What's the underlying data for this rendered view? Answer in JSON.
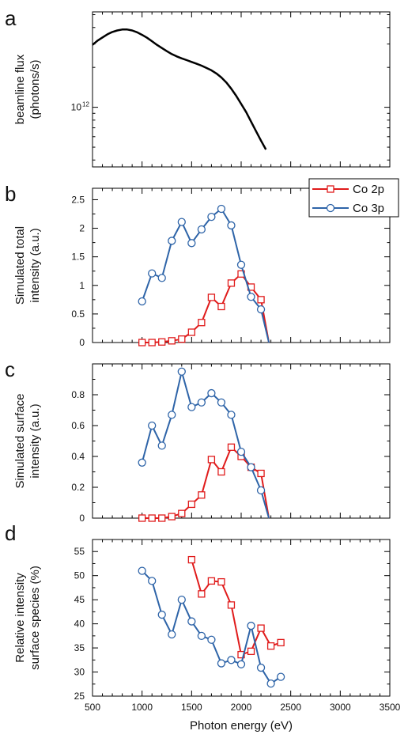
{
  "chart_data": [
    {
      "panel": "a",
      "type": "line",
      "yscale": "log",
      "ylabel": [
        "beamline flux",
        "(photons/s)"
      ],
      "yticks": [
        {
          "value": 1000000000000.0,
          "label": "10",
          "sup": "12"
        }
      ],
      "xlim": [
        500,
        3500
      ],
      "ylim_log10": [
        11.55,
        12.72
      ],
      "series": [
        {
          "color": "#000000",
          "x": [
            500,
            550,
            600,
            650,
            700,
            750,
            800,
            850,
            900,
            950,
            1000,
            1050,
            1100,
            1150,
            1200,
            1250,
            1300,
            1350,
            1400,
            1450,
            1500,
            1550,
            1600,
            1650,
            1700,
            1750,
            1800,
            1850,
            1900,
            1950,
            2000,
            2050,
            2100,
            2150,
            2200,
            2250
          ],
          "y": [
            2960000000000.0,
            3180000000000.0,
            3360000000000.0,
            3550000000000.0,
            3700000000000.0,
            3800000000000.0,
            3860000000000.0,
            3860000000000.0,
            3800000000000.0,
            3680000000000.0,
            3520000000000.0,
            3350000000000.0,
            3150000000000.0,
            2960000000000.0,
            2800000000000.0,
            2650000000000.0,
            2520000000000.0,
            2420000000000.0,
            2340000000000.0,
            2270000000000.0,
            2200000000000.0,
            2130000000000.0,
            2060000000000.0,
            1980000000000.0,
            1900000000000.0,
            1800000000000.0,
            1680000000000.0,
            1540000000000.0,
            1380000000000.0,
            1220000000000.0,
            1060000000000.0,
            920000000000.0,
            780000000000.0,
            660000000000.0,
            560000000000.0,
            480000000000.0
          ]
        }
      ]
    },
    {
      "panel": "b",
      "type": "line",
      "ylabel": [
        "Simulated total",
        "intensity (a.u.)"
      ],
      "yticks": [
        0,
        0.5,
        1,
        1.5,
        2,
        2.5
      ],
      "ytick_labels": [
        "0",
        "0.5",
        "1",
        "1.5",
        "2",
        "2.5"
      ],
      "xlim": [
        500,
        3500
      ],
      "ylim": [
        0,
        2.7
      ],
      "series": [
        {
          "name": "Co 2p",
          "color": "#e01b1b",
          "marker": "square",
          "x": [
            1000,
            1100,
            1200,
            1300,
            1400,
            1500,
            1600,
            1700,
            1800,
            1900,
            2000,
            2100,
            2200,
            2280
          ],
          "y": [
            0.0,
            0.0,
            0.01,
            0.03,
            0.06,
            0.18,
            0.35,
            0.79,
            0.63,
            1.04,
            1.2,
            0.97,
            0.75,
            0
          ]
        },
        {
          "name": "Co 3p",
          "color": "#2e64a8",
          "marker": "circle",
          "x": [
            1000,
            1100,
            1200,
            1300,
            1400,
            1500,
            1600,
            1700,
            1800,
            1900,
            2000,
            2100,
            2200,
            2280
          ],
          "y": [
            0.72,
            1.21,
            1.13,
            1.78,
            2.11,
            1.74,
            1.98,
            2.2,
            2.34,
            2.05,
            1.36,
            0.8,
            0.58,
            0
          ]
        }
      ],
      "legend": [
        {
          "label": "Co 2p",
          "color": "#e01b1b",
          "marker": "square"
        },
        {
          "label": "Co 3p",
          "color": "#2e64a8",
          "marker": "circle"
        }
      ]
    },
    {
      "panel": "c",
      "type": "line",
      "ylabel": [
        "Simulated surface",
        "intensity (a.u.)"
      ],
      "yticks": [
        0,
        0.2,
        0.4,
        0.6,
        0.8
      ],
      "ytick_labels": [
        "0",
        "0.2",
        "0.4",
        "0.6",
        "0.8"
      ],
      "xlim": [
        500,
        3500
      ],
      "ylim": [
        0,
        1.0
      ],
      "series": [
        {
          "name": "Co 2p",
          "color": "#e01b1b",
          "marker": "square",
          "x": [
            1000,
            1100,
            1200,
            1300,
            1400,
            1500,
            1600,
            1700,
            1800,
            1900,
            2000,
            2100,
            2200,
            2280
          ],
          "y": [
            0.0,
            0.0,
            0.0,
            0.01,
            0.03,
            0.09,
            0.15,
            0.38,
            0.3,
            0.46,
            0.4,
            0.33,
            0.29,
            0
          ]
        },
        {
          "name": "Co 3p",
          "color": "#2e64a8",
          "marker": "circle",
          "x": [
            1000,
            1100,
            1200,
            1300,
            1400,
            1500,
            1600,
            1700,
            1800,
            1900,
            2000,
            2100,
            2200,
            2280
          ],
          "y": [
            0.36,
            0.6,
            0.47,
            0.67,
            0.95,
            0.72,
            0.75,
            0.81,
            0.75,
            0.67,
            0.43,
            0.33,
            0.18,
            0
          ]
        }
      ]
    },
    {
      "panel": "d",
      "type": "line",
      "ylabel": [
        "Relative intensity",
        "surface species (%)"
      ],
      "yticks": [
        25,
        30,
        35,
        40,
        45,
        50,
        55
      ],
      "ytick_labels": [
        "25",
        "30",
        "35",
        "40",
        "45",
        "50",
        "55"
      ],
      "xlim": [
        500,
        3500
      ],
      "ylim": [
        25,
        57.5
      ],
      "xlabel": "Photon energy (eV)",
      "xticks": [
        500,
        1000,
        1500,
        2000,
        2500,
        3000,
        3500
      ],
      "xtick_labels": [
        "500",
        "1000",
        "1500",
        "2000",
        "2500",
        "3000",
        "3500"
      ],
      "series": [
        {
          "name": "Co 2p",
          "color": "#e01b1b",
          "marker": "square",
          "x": [
            1500,
            1600,
            1700,
            1800,
            1900,
            2000,
            2100,
            2200,
            2300,
            2400
          ],
          "y": [
            53.3,
            46.2,
            48.9,
            48.7,
            43.9,
            33.6,
            34.3,
            39.1,
            35.4,
            36.1
          ]
        },
        {
          "name": "Co 3p",
          "color": "#2e64a8",
          "marker": "circle",
          "x": [
            1000,
            1100,
            1200,
            1300,
            1400,
            1500,
            1600,
            1700,
            1800,
            1900,
            2000,
            2100,
            2200,
            2300,
            2400
          ],
          "y": [
            51.0,
            48.9,
            41.9,
            37.8,
            45.0,
            40.5,
            37.5,
            36.7,
            31.8,
            32.5,
            31.6,
            39.6,
            30.9,
            27.6,
            29.0
          ]
        }
      ]
    }
  ]
}
